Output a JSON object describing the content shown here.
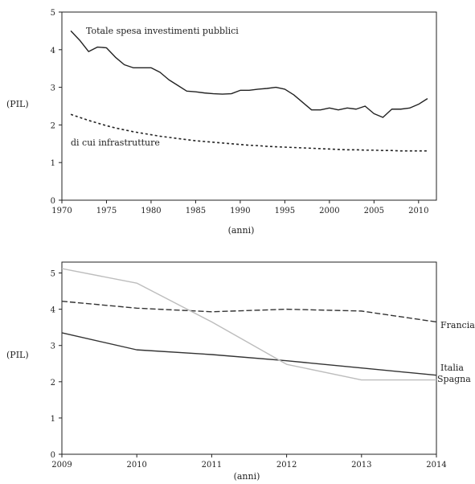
{
  "chart_data": [
    {
      "type": "line",
      "x": [
        1971,
        1972,
        1973,
        1974,
        1975,
        1976,
        1977,
        1978,
        1979,
        1980,
        1981,
        1982,
        1983,
        1984,
        1985,
        1986,
        1987,
        1988,
        1989,
        1990,
        1991,
        1992,
        1993,
        1994,
        1995,
        1996,
        1997,
        1998,
        1999,
        2000,
        2001,
        2002,
        2003,
        2004,
        2005,
        2006,
        2007,
        2008,
        2009,
        2010,
        2011
      ],
      "series": [
        {
          "name": "Totale spesa investimenti pubblici",
          "values": [
            4.5,
            4.25,
            3.95,
            4.07,
            4.05,
            3.8,
            3.6,
            3.52,
            3.52,
            3.52,
            3.4,
            3.2,
            3.05,
            2.9,
            2.88,
            2.85,
            2.83,
            2.82,
            2.83,
            2.92,
            2.92,
            2.95,
            2.97,
            3.0,
            2.95,
            2.8,
            2.6,
            2.4,
            2.4,
            2.45,
            2.4,
            2.45,
            2.42,
            2.5,
            2.3,
            2.2,
            2.42,
            2.42,
            2.45,
            2.55,
            2.7
          ],
          "style": "solid",
          "color": "#222222"
        },
        {
          "name": "di cui infrastrutture",
          "values": [
            2.28,
            2.2,
            2.12,
            2.05,
            1.98,
            1.92,
            1.87,
            1.82,
            1.78,
            1.74,
            1.7,
            1.67,
            1.64,
            1.61,
            1.58,
            1.56,
            1.54,
            1.52,
            1.5,
            1.48,
            1.46,
            1.45,
            1.43,
            1.42,
            1.41,
            1.4,
            1.39,
            1.38,
            1.37,
            1.36,
            1.35,
            1.34,
            1.34,
            1.33,
            1.33,
            1.32,
            1.32,
            1.31,
            1.31,
            1.31,
            1.31
          ],
          "style": "dotted",
          "color": "#222222"
        }
      ],
      "xlabel": "(anni)",
      "ylabel": "(PIL)",
      "xlim": [
        1970,
        2012
      ],
      "ylim": [
        0,
        5
      ],
      "xticks": [
        1970,
        1975,
        1980,
        1985,
        1990,
        1995,
        2000,
        2005,
        2010
      ],
      "yticks": [
        0,
        1,
        2,
        3,
        4,
        5
      ],
      "grid": false
    },
    {
      "type": "line",
      "x": [
        2009,
        2010,
        2011,
        2012,
        2013,
        2014
      ],
      "series": [
        {
          "name": "Francia",
          "values": [
            4.22,
            4.03,
            3.93,
            4.0,
            3.95,
            3.65
          ],
          "style": "dashed",
          "color": "#333333"
        },
        {
          "name": "Italia",
          "values": [
            3.35,
            2.88,
            2.75,
            2.58,
            2.38,
            2.18
          ],
          "style": "solid",
          "color": "#333333"
        },
        {
          "name": "Spagna",
          "values": [
            5.12,
            4.72,
            3.65,
            2.48,
            2.05,
            2.05
          ],
          "style": "solid",
          "color": "#bdbdbd"
        }
      ],
      "xlabel": "(anni)",
      "ylabel": "(PIL)",
      "xlim": [
        2009,
        2014
      ],
      "ylim": [
        0,
        5.3
      ],
      "xticks": [
        2009,
        2010,
        2011,
        2012,
        2013,
        2014
      ],
      "yticks": [
        0,
        1,
        2,
        3,
        4,
        5
      ],
      "grid": false
    }
  ]
}
